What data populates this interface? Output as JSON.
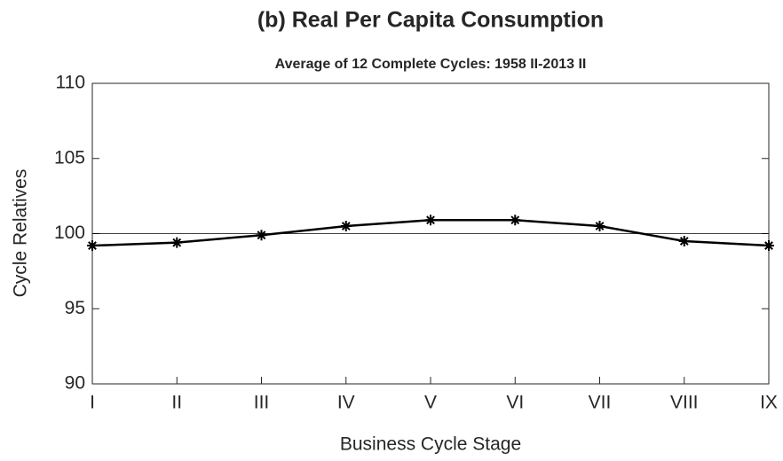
{
  "chart_data": {
    "type": "line",
    "title": "(b) Real Per Capita Consumption",
    "subtitle": "Average of 12 Complete Cycles: 1958 II-2013 II",
    "x_label": "Business Cycle Stage",
    "y_label": "Cycle Relatives",
    "categories": [
      "I",
      "II",
      "III",
      "IV",
      "V",
      "VI",
      "VII",
      "VIII",
      "IX"
    ],
    "values": [
      99.2,
      99.4,
      99.9,
      100.5,
      100.9,
      100.9,
      100.5,
      99.5,
      99.2
    ],
    "color": "#000000",
    "reference_line": 100,
    "ylim": [
      90,
      110
    ],
    "yticks": [
      90,
      95,
      100,
      105,
      110
    ]
  }
}
